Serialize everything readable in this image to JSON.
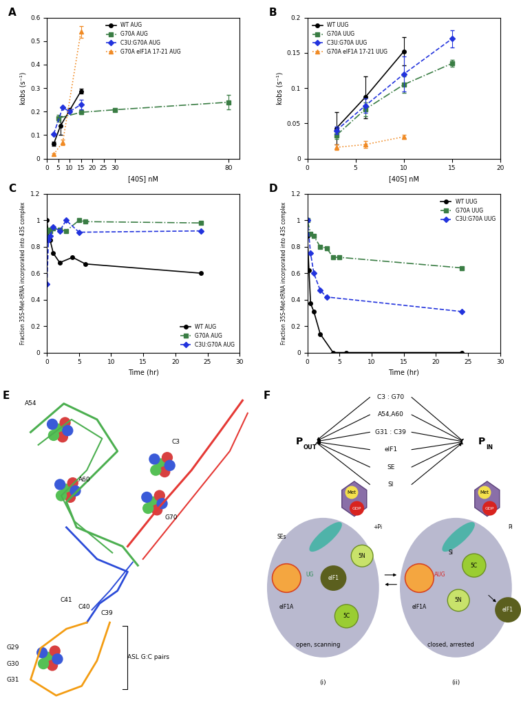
{
  "chart_data": [
    {
      "panel": "A",
      "type": "line",
      "xlabel": "[40S] nM",
      "ylabel": "kobs (s⁻¹)",
      "xlim": [
        0,
        85
      ],
      "xticks": [
        0,
        5,
        10,
        15,
        20,
        25,
        30,
        80
      ],
      "ylim": [
        0,
        0.6
      ],
      "yticks": [
        0,
        0.1,
        0.2,
        0.3,
        0.4,
        0.5,
        0.6
      ],
      "legend": "upper center",
      "series": [
        {
          "name": "WT AUG",
          "color": "#000000",
          "marker": "circle",
          "line_style": "solid",
          "x": [
            3,
            6,
            10,
            15
          ],
          "values": [
            0.063,
            0.14,
            0.205,
            0.287
          ],
          "error": [
            0.008,
            0.04,
            0.01,
            0.01
          ]
        },
        {
          "name": "G70A AUG",
          "color": "#3a7d44",
          "marker": "square",
          "line_style": "dashdot",
          "x": [
            5,
            15,
            30,
            80
          ],
          "values": [
            0.172,
            0.197,
            0.208,
            0.24
          ],
          "error": [
            0.015,
            0.008,
            0.005,
            0.03
          ]
        },
        {
          "name": "C3U:G70A AUG",
          "color": "#2233dd",
          "marker": "diamond",
          "line_style": "dashed",
          "x": [
            3,
            7,
            10,
            15
          ],
          "values": [
            0.105,
            0.218,
            0.2,
            0.23
          ],
          "error": [
            null,
            null,
            null,
            0.02
          ]
        },
        {
          "name": "G70A eIF1A 17-21 AUG",
          "color": "#f08a24",
          "marker": "triangle",
          "line_style": "dotted",
          "x": [
            3,
            7,
            15
          ],
          "values": [
            0.018,
            0.07,
            0.54
          ],
          "error": [
            0.005,
            0.012,
            0.025
          ]
        }
      ]
    },
    {
      "panel": "B",
      "type": "line",
      "xlabel": "[40S] nM",
      "ylabel": "kobs (s⁻¹)",
      "xlim": [
        0,
        20
      ],
      "xticks": [
        0,
        5,
        10,
        15,
        20
      ],
      "ylim": [
        0,
        0.2
      ],
      "yticks": [
        0,
        0.05,
        0.1,
        0.15,
        0.2
      ],
      "legend": "upper left",
      "series": [
        {
          "name": "WT UUG",
          "color": "#000000",
          "marker": "circle",
          "line_style": "solid",
          "x": [
            3,
            6,
            10
          ],
          "values": [
            0.043,
            0.087,
            0.152
          ],
          "error": [
            0.023,
            0.03,
            0.02
          ]
        },
        {
          "name": "G70A UUG",
          "color": "#3a7d44",
          "marker": "square",
          "line_style": "dashdot",
          "x": [
            3,
            6,
            10,
            15
          ],
          "values": [
            0.033,
            0.07,
            0.105,
            0.135
          ],
          "error": [
            0.005,
            0.01,
            0.012,
            0.005
          ]
        },
        {
          "name": "C3U:G70A UUG",
          "color": "#2233dd",
          "marker": "diamond",
          "line_style": "dashed",
          "x": [
            3,
            6,
            10,
            15
          ],
          "values": [
            0.04,
            0.075,
            0.12,
            0.17
          ],
          "error": [
            0.005,
            0.01,
            0.025,
            0.012
          ]
        },
        {
          "name": "G70A eIF1A 17-21 UUG",
          "color": "#f08a24",
          "marker": "triangle",
          "line_style": "dotted",
          "x": [
            3,
            6,
            10
          ],
          "values": [
            0.016,
            0.02,
            0.031
          ],
          "error": [
            0.004,
            0.005,
            0.003
          ]
        }
      ]
    },
    {
      "panel": "C",
      "type": "line",
      "xlabel": "Time (hr)",
      "ylabel": "Fraction 35S-Met-tRNA incorporated into 43S complex",
      "xlim": [
        0,
        30
      ],
      "xticks": [
        0,
        5,
        10,
        15,
        20,
        25,
        30
      ],
      "ylim": [
        0,
        1.2
      ],
      "yticks": [
        0,
        0.2,
        0.4,
        0.6,
        0.8,
        1,
        1.2
      ],
      "legend": "lower right",
      "series": [
        {
          "name": "WT AUG",
          "color": "#000000",
          "marker": "circle",
          "line_style": "solid",
          "x": [
            0,
            0.25,
            0.5,
            1,
            2,
            4,
            6,
            24
          ],
          "values": [
            1.0,
            0.87,
            0.85,
            0.75,
            0.68,
            0.72,
            0.67,
            0.6
          ]
        },
        {
          "name": "G70A AUG",
          "color": "#3a7d44",
          "marker": "square",
          "line_style": "dashdot",
          "x": [
            0,
            0.25,
            0.5,
            1,
            2,
            3,
            5,
            6,
            24
          ],
          "values": [
            0.86,
            0.93,
            0.92,
            0.94,
            0.93,
            0.92,
            1.0,
            0.99,
            0.98
          ]
        },
        {
          "name": "C3U:G70A AUG",
          "color": "#2233dd",
          "marker": "diamond",
          "line_style": "dashed",
          "x": [
            0,
            0.25,
            0.5,
            1,
            2,
            3,
            5,
            24
          ],
          "values": [
            0.52,
            0.85,
            0.88,
            0.95,
            0.92,
            1.0,
            0.91,
            0.92
          ]
        }
      ]
    },
    {
      "panel": "D",
      "type": "line",
      "xlabel": "Time (hr)",
      "ylabel": "Fraction 35S-Met-tRNA incorporated into 43S complex",
      "xlim": [
        0,
        30
      ],
      "xticks": [
        0,
        5,
        10,
        15,
        20,
        25,
        30
      ],
      "ylim": [
        0,
        1.2
      ],
      "yticks": [
        0,
        0.2,
        0.4,
        0.6,
        0.8,
        1,
        1.2
      ],
      "legend": "upper right",
      "series": [
        {
          "name": "WT UUG",
          "color": "#000000",
          "marker": "circle",
          "line_style": "solid",
          "x": [
            0,
            0.25,
            0.5,
            1,
            2,
            4,
            6,
            24
          ],
          "values": [
            0.88,
            0.62,
            0.37,
            0.31,
            0.14,
            0,
            0,
            0
          ]
        },
        {
          "name": "G70A UUG",
          "color": "#3a7d44",
          "marker": "square",
          "line_style": "dashdot",
          "x": [
            0,
            0.5,
            1,
            2,
            3,
            4,
            5,
            24
          ],
          "values": [
            1.0,
            0.9,
            0.88,
            0.8,
            0.79,
            0.72,
            0.72,
            0.64
          ]
        },
        {
          "name": "C3U:G70A UUG",
          "color": "#2233dd",
          "marker": "diamond",
          "line_style": "dashed",
          "x": [
            0,
            0.5,
            1,
            2,
            3,
            24
          ],
          "values": [
            1.0,
            0.75,
            0.6,
            0.47,
            0.42,
            0.31
          ]
        }
      ]
    }
  ],
  "diagram": {
    "E": {
      "panel": "E",
      "labels": [
        "A54",
        "A60",
        "C3",
        "G70",
        "C41",
        "C40",
        "C39",
        "G29",
        "G30",
        "G31",
        "ASL G:C pairs"
      ]
    },
    "F": {
      "panel": "F",
      "regulators": [
        "C3 : G70",
        "A54,A60",
        "G31 : C39",
        "eIF1",
        "SE",
        "SI"
      ],
      "P_out": {
        "main": "P",
        "sub": "OUT"
      },
      "P_in": {
        "main": "P",
        "sub": "IN"
      },
      "state_i": {
        "SEs": "SEs",
        "UG": "UG",
        "eIF1A": "eIF1A",
        "eIF1": "eIF1",
        "5N": "5N",
        "5C": "5C",
        "Met": "Met",
        "GDP": "GDP",
        "Pi": "+Pi",
        "caption": "open, scanning",
        "numeral": "(i)"
      },
      "state_ii": {
        "AUG": "AUG",
        "SI": "SI",
        "eIF1A": "eIF1A",
        "5C": "5C",
        "5N": "5N",
        "Met": "Met",
        "GDP": "GDP",
        "Pi": "Pi",
        "eIF1": "eIF1",
        "caption": "closed, arrested",
        "numeral": "(ii)"
      }
    }
  }
}
